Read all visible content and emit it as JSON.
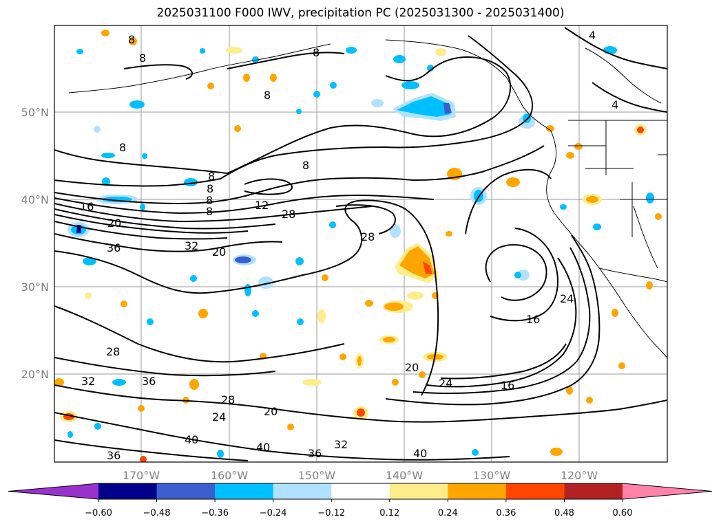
{
  "title": "2025031100 F000 IWV, precipitation PC (2025031300 - 2025031400)",
  "map": {
    "lat_ticks": [
      "50°N",
      "40°N",
      "30°N",
      "20°N"
    ],
    "lon_ticks": [
      "170°W",
      "160°W",
      "150°W",
      "140°W",
      "130°W",
      "120°W"
    ],
    "contour_labels": [
      "4",
      "8",
      "12",
      "16",
      "20",
      "24",
      "28",
      "32",
      "36",
      "40"
    ],
    "grid": true,
    "land_outline": true
  },
  "colorbar": {
    "ticks": [
      "−0.60",
      "−0.48",
      "−0.36",
      "−0.24",
      "−0.12",
      "0.12",
      "0.24",
      "0.36",
      "0.48",
      "0.60"
    ],
    "colors": [
      "#9932cc",
      "#00008b",
      "#3a5fcd",
      "#00bfff",
      "#b0e2ff",
      "#ffffff",
      "#ffec8b",
      "#ffa500",
      "#ff4500",
      "#b22222",
      "#ff82ab"
    ],
    "extend": "both"
  }
}
